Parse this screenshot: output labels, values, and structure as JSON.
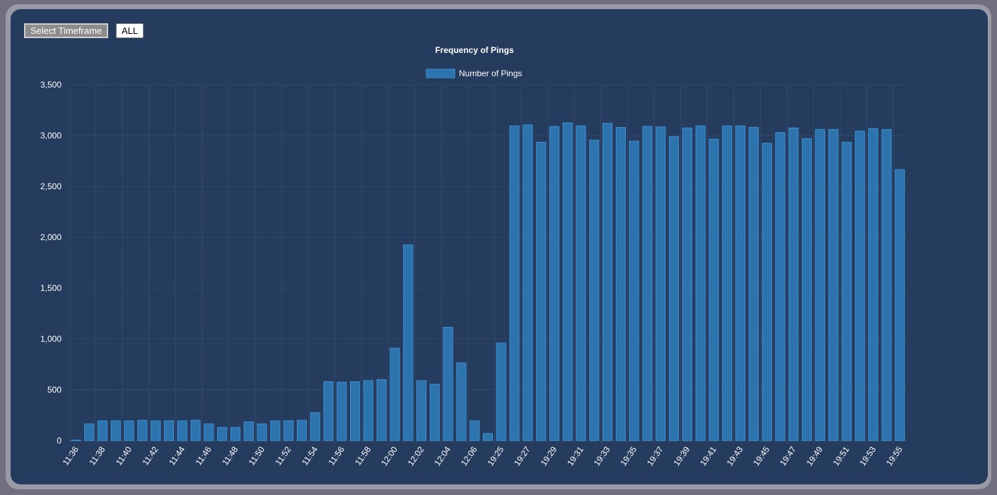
{
  "controls": {
    "select_timeframe_label": "Select Timeframe",
    "all_label": "ALL"
  },
  "colors": {
    "background": "#263c5e",
    "bar_fill": "#2d73ad",
    "bar_border": "#3b8fd4",
    "grid": "#33496b"
  },
  "chart_data": {
    "type": "bar",
    "title": "Frequency of Pings",
    "xlabel": "",
    "ylabel": "",
    "ylim": [
      0,
      3500
    ],
    "yticks": [
      "0",
      "500",
      "1,000",
      "1,500",
      "2,000",
      "2,500",
      "3,000",
      "3,500"
    ],
    "ytick_values": [
      0,
      500,
      1000,
      1500,
      2000,
      2500,
      3000,
      3500
    ],
    "grid": true,
    "legend_position": "top-center",
    "categories": [
      "11:36",
      "11:37",
      "11:38",
      "11:39",
      "11:40",
      "11:41",
      "11:42",
      "11:43",
      "11:44",
      "11:45",
      "11:46",
      "11:47",
      "11:48",
      "11:49",
      "11:50",
      "11:51",
      "11:52",
      "11:53",
      "11:54",
      "11:55",
      "11:56",
      "11:57",
      "11:58",
      "11:59",
      "12:00",
      "12:01",
      "12:02",
      "12:03",
      "12:04",
      "12:05",
      "12:06",
      "12:07",
      "19:25",
      "19:26",
      "19:27",
      "19:28",
      "19:29",
      "19:30",
      "19:31",
      "19:32",
      "19:33",
      "19:34",
      "19:35",
      "19:36",
      "19:37",
      "19:38",
      "19:39",
      "19:40",
      "19:41",
      "19:42",
      "19:43",
      "19:44",
      "19:45",
      "19:46",
      "19:47",
      "19:48",
      "19:49",
      "19:50",
      "19:51",
      "19:52",
      "19:53",
      "19:54",
      "19:55"
    ],
    "x_tick_labels": [
      "11:36",
      "11:38",
      "11:40",
      "11:42",
      "11:44",
      "11:46",
      "11:48",
      "11:50",
      "11:52",
      "11:54",
      "11:56",
      "11:58",
      "12:00",
      "12:02",
      "12:04",
      "12:06",
      "19:25",
      "19:27",
      "19:29",
      "19:31",
      "19:33",
      "19:35",
      "19:37",
      "19:39",
      "19:41",
      "19:43",
      "19:45",
      "19:47",
      "19:49",
      "19:51",
      "19:53",
      "19:55"
    ],
    "series": [
      {
        "name": "Number of Pings",
        "values": [
          5,
          165,
          195,
          195,
          195,
          200,
          195,
          195,
          195,
          200,
          165,
          130,
          130,
          185,
          165,
          195,
          195,
          200,
          275,
          580,
          575,
          580,
          590,
          600,
          910,
          1925,
          590,
          555,
          1115,
          765,
          195,
          70,
          960,
          3095,
          3105,
          2935,
          3090,
          3125,
          3095,
          2955,
          3120,
          3080,
          2945,
          3090,
          3085,
          2990,
          3075,
          3095,
          2965,
          3095,
          3095,
          3080,
          2925,
          3030,
          3075,
          2970,
          3060,
          3060,
          2935,
          3045,
          3070,
          3060,
          2665
        ]
      }
    ]
  }
}
